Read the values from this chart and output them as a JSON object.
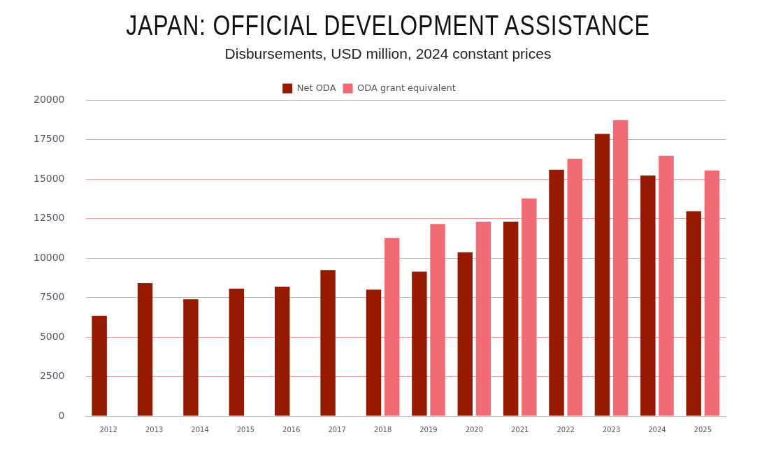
{
  "chart_data": {
    "type": "bar",
    "title": "JAPAN: OFFICIAL DEVELOPMENT ASSISTANCE",
    "subtitle": "Disbursements, USD million, 2024 constant prices",
    "categories": [
      "2012",
      "2013",
      "2014",
      "2015",
      "2016",
      "2017",
      "2018",
      "2019",
      "2020",
      "2021",
      "2022",
      "2023",
      "2024",
      "2025"
    ],
    "series": [
      {
        "name": "Net ODA",
        "color": "#961a00",
        "values": [
          6340,
          8420,
          7400,
          8070,
          8190,
          9250,
          8000,
          9150,
          10370,
          12310,
          15600,
          17870,
          15230,
          12960
        ]
      },
      {
        "name": "ODA grant equivalent",
        "color": "#f06b73",
        "values": [
          null,
          null,
          null,
          null,
          null,
          null,
          11280,
          12170,
          12310,
          13780,
          16300,
          18740,
          16490,
          15560
        ]
      }
    ],
    "ylim": [
      0,
      20000
    ],
    "yticks": [
      0,
      2500,
      5000,
      7500,
      10000,
      12500,
      15000,
      17500,
      20000
    ],
    "grid": "y",
    "legend": "top"
  }
}
